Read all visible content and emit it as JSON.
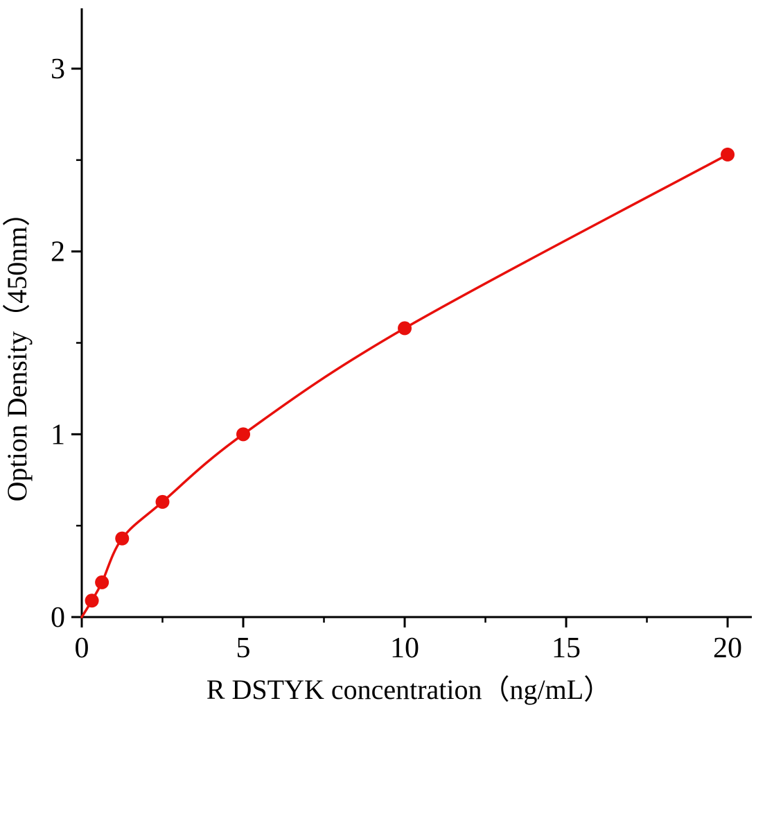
{
  "page": {
    "background": "#ffffff"
  },
  "chart_data": {
    "type": "line",
    "title": "",
    "xlabel": "R DSTYK concentration（ng/mL）",
    "ylabel": "Option Density（450nm）",
    "x": [
      0.313,
      0.625,
      1.25,
      2.5,
      5,
      10,
      20
    ],
    "y": [
      0.09,
      0.19,
      0.43,
      0.63,
      1.0,
      1.58,
      2.53
    ],
    "curve_origin": [
      0,
      0
    ],
    "x_ticks": [
      0,
      5,
      10,
      15,
      20
    ],
    "y_ticks": [
      0,
      1,
      2,
      3
    ],
    "x_minor_ticks": [
      2.5,
      7.5,
      12.5,
      17.5
    ],
    "y_minor_ticks": [
      0.5,
      1.5,
      2.5
    ],
    "xlim": [
      0,
      20.75
    ],
    "ylim": [
      0,
      3.33
    ],
    "line_color": "#e8100c",
    "marker_color": "#e8100c",
    "axis_color": "#000000",
    "grid": false,
    "legend": "none"
  }
}
